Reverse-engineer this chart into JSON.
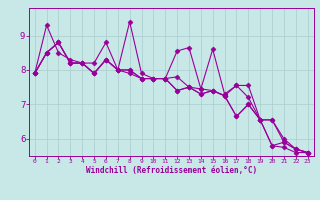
{
  "xlabel": "Windchill (Refroidissement éolien,°C)",
  "x": [
    0,
    1,
    2,
    3,
    4,
    5,
    6,
    7,
    8,
    9,
    10,
    11,
    12,
    13,
    14,
    15,
    16,
    17,
    18,
    19,
    20,
    21,
    22,
    23
  ],
  "series": [
    [
      7.9,
      9.3,
      8.5,
      8.3,
      8.2,
      8.2,
      8.8,
      8.0,
      9.4,
      7.9,
      7.75,
      7.75,
      8.55,
      8.65,
      7.45,
      8.6,
      7.3,
      7.55,
      7.55,
      6.55,
      5.8,
      5.75,
      5.6,
      5.6
    ],
    [
      7.9,
      8.5,
      8.8,
      8.2,
      8.2,
      7.9,
      8.3,
      8.0,
      8.0,
      7.75,
      7.75,
      7.75,
      7.8,
      7.5,
      7.45,
      7.4,
      7.25,
      7.55,
      7.2,
      6.55,
      5.8,
      5.9,
      5.7,
      5.6
    ],
    [
      7.9,
      8.5,
      8.8,
      8.2,
      8.2,
      7.9,
      8.3,
      8.0,
      7.9,
      7.75,
      7.75,
      7.75,
      7.4,
      7.5,
      7.3,
      7.4,
      7.25,
      6.65,
      7.0,
      6.55,
      6.55,
      5.9,
      5.7,
      5.6
    ],
    [
      7.9,
      8.5,
      8.8,
      8.2,
      8.2,
      7.9,
      8.3,
      8.0,
      8.0,
      7.75,
      7.75,
      7.75,
      7.4,
      7.5,
      7.3,
      7.4,
      7.25,
      6.65,
      7.0,
      6.55,
      6.55,
      6.0,
      5.7,
      5.6
    ]
  ],
  "line_color": "#990099",
  "bg_color": "#c8e8e8",
  "grid_color": "#aacccc",
  "ylim": [
    5.5,
    9.8
  ],
  "yticks": [
    6,
    7,
    8,
    9
  ],
  "marker": "D",
  "markersize": 2.5,
  "linewidth": 0.8
}
